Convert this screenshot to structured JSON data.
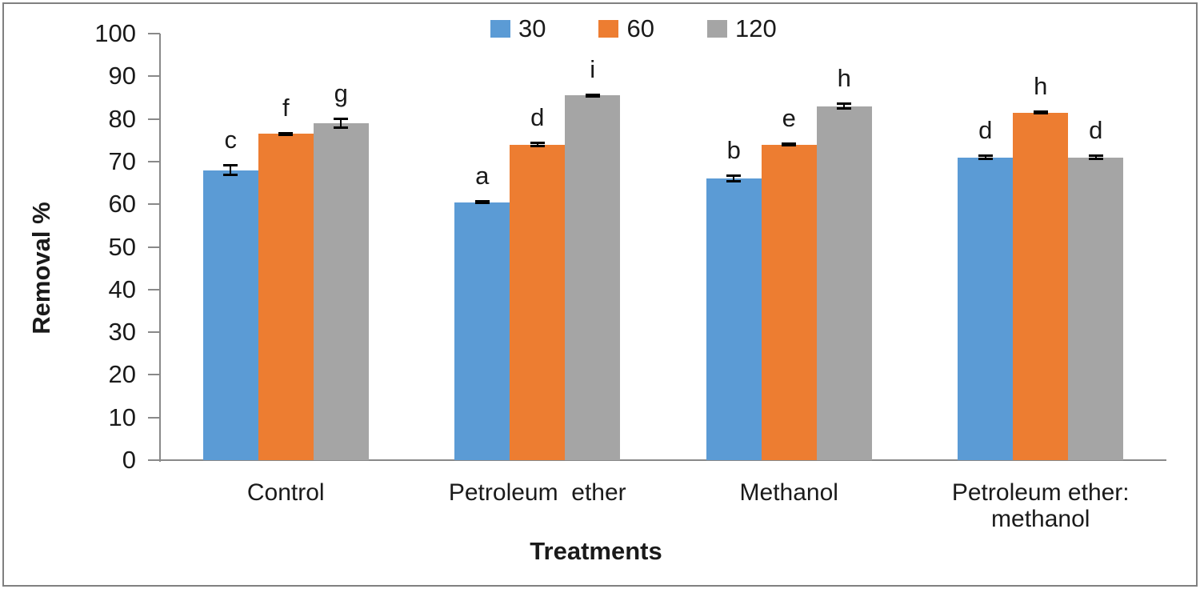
{
  "chart_data": {
    "type": "bar",
    "title": "",
    "xlabel": "Treatments",
    "ylabel": "Removal %",
    "ylim": [
      0,
      100
    ],
    "yticks": [
      0,
      10,
      20,
      30,
      40,
      50,
      60,
      70,
      80,
      90,
      100
    ],
    "grid": false,
    "legend_position": "top-center",
    "categories": [
      "Control",
      "Petroleum  ether",
      "Methanol",
      "Petroleum ether:\nmethanol"
    ],
    "series": [
      {
        "name": "30",
        "color": "#5B9BD5",
        "values": [
          68,
          60.5,
          66,
          71
        ],
        "errors": [
          1.2,
          0.3,
          0.7,
          0.4
        ],
        "letters": [
          "c",
          "a",
          "b",
          "d"
        ]
      },
      {
        "name": "60",
        "color": "#ED7D31",
        "values": [
          76.5,
          74,
          74,
          81.5
        ],
        "errors": [
          0.3,
          0.5,
          0.3,
          0.3
        ],
        "letters": [
          "f",
          "d",
          "e",
          "h"
        ]
      },
      {
        "name": "120",
        "color": "#A5A5A5",
        "values": [
          79,
          85.5,
          83,
          71
        ],
        "errors": [
          1.2,
          0.3,
          0.7,
          0.5
        ],
        "letters": [
          "g",
          "i",
          "h",
          "d"
        ]
      }
    ],
    "colors": {
      "axis": "#898989",
      "frame_border": "#808080",
      "text": "#1a1a1a",
      "error_bar": "#000000"
    }
  }
}
